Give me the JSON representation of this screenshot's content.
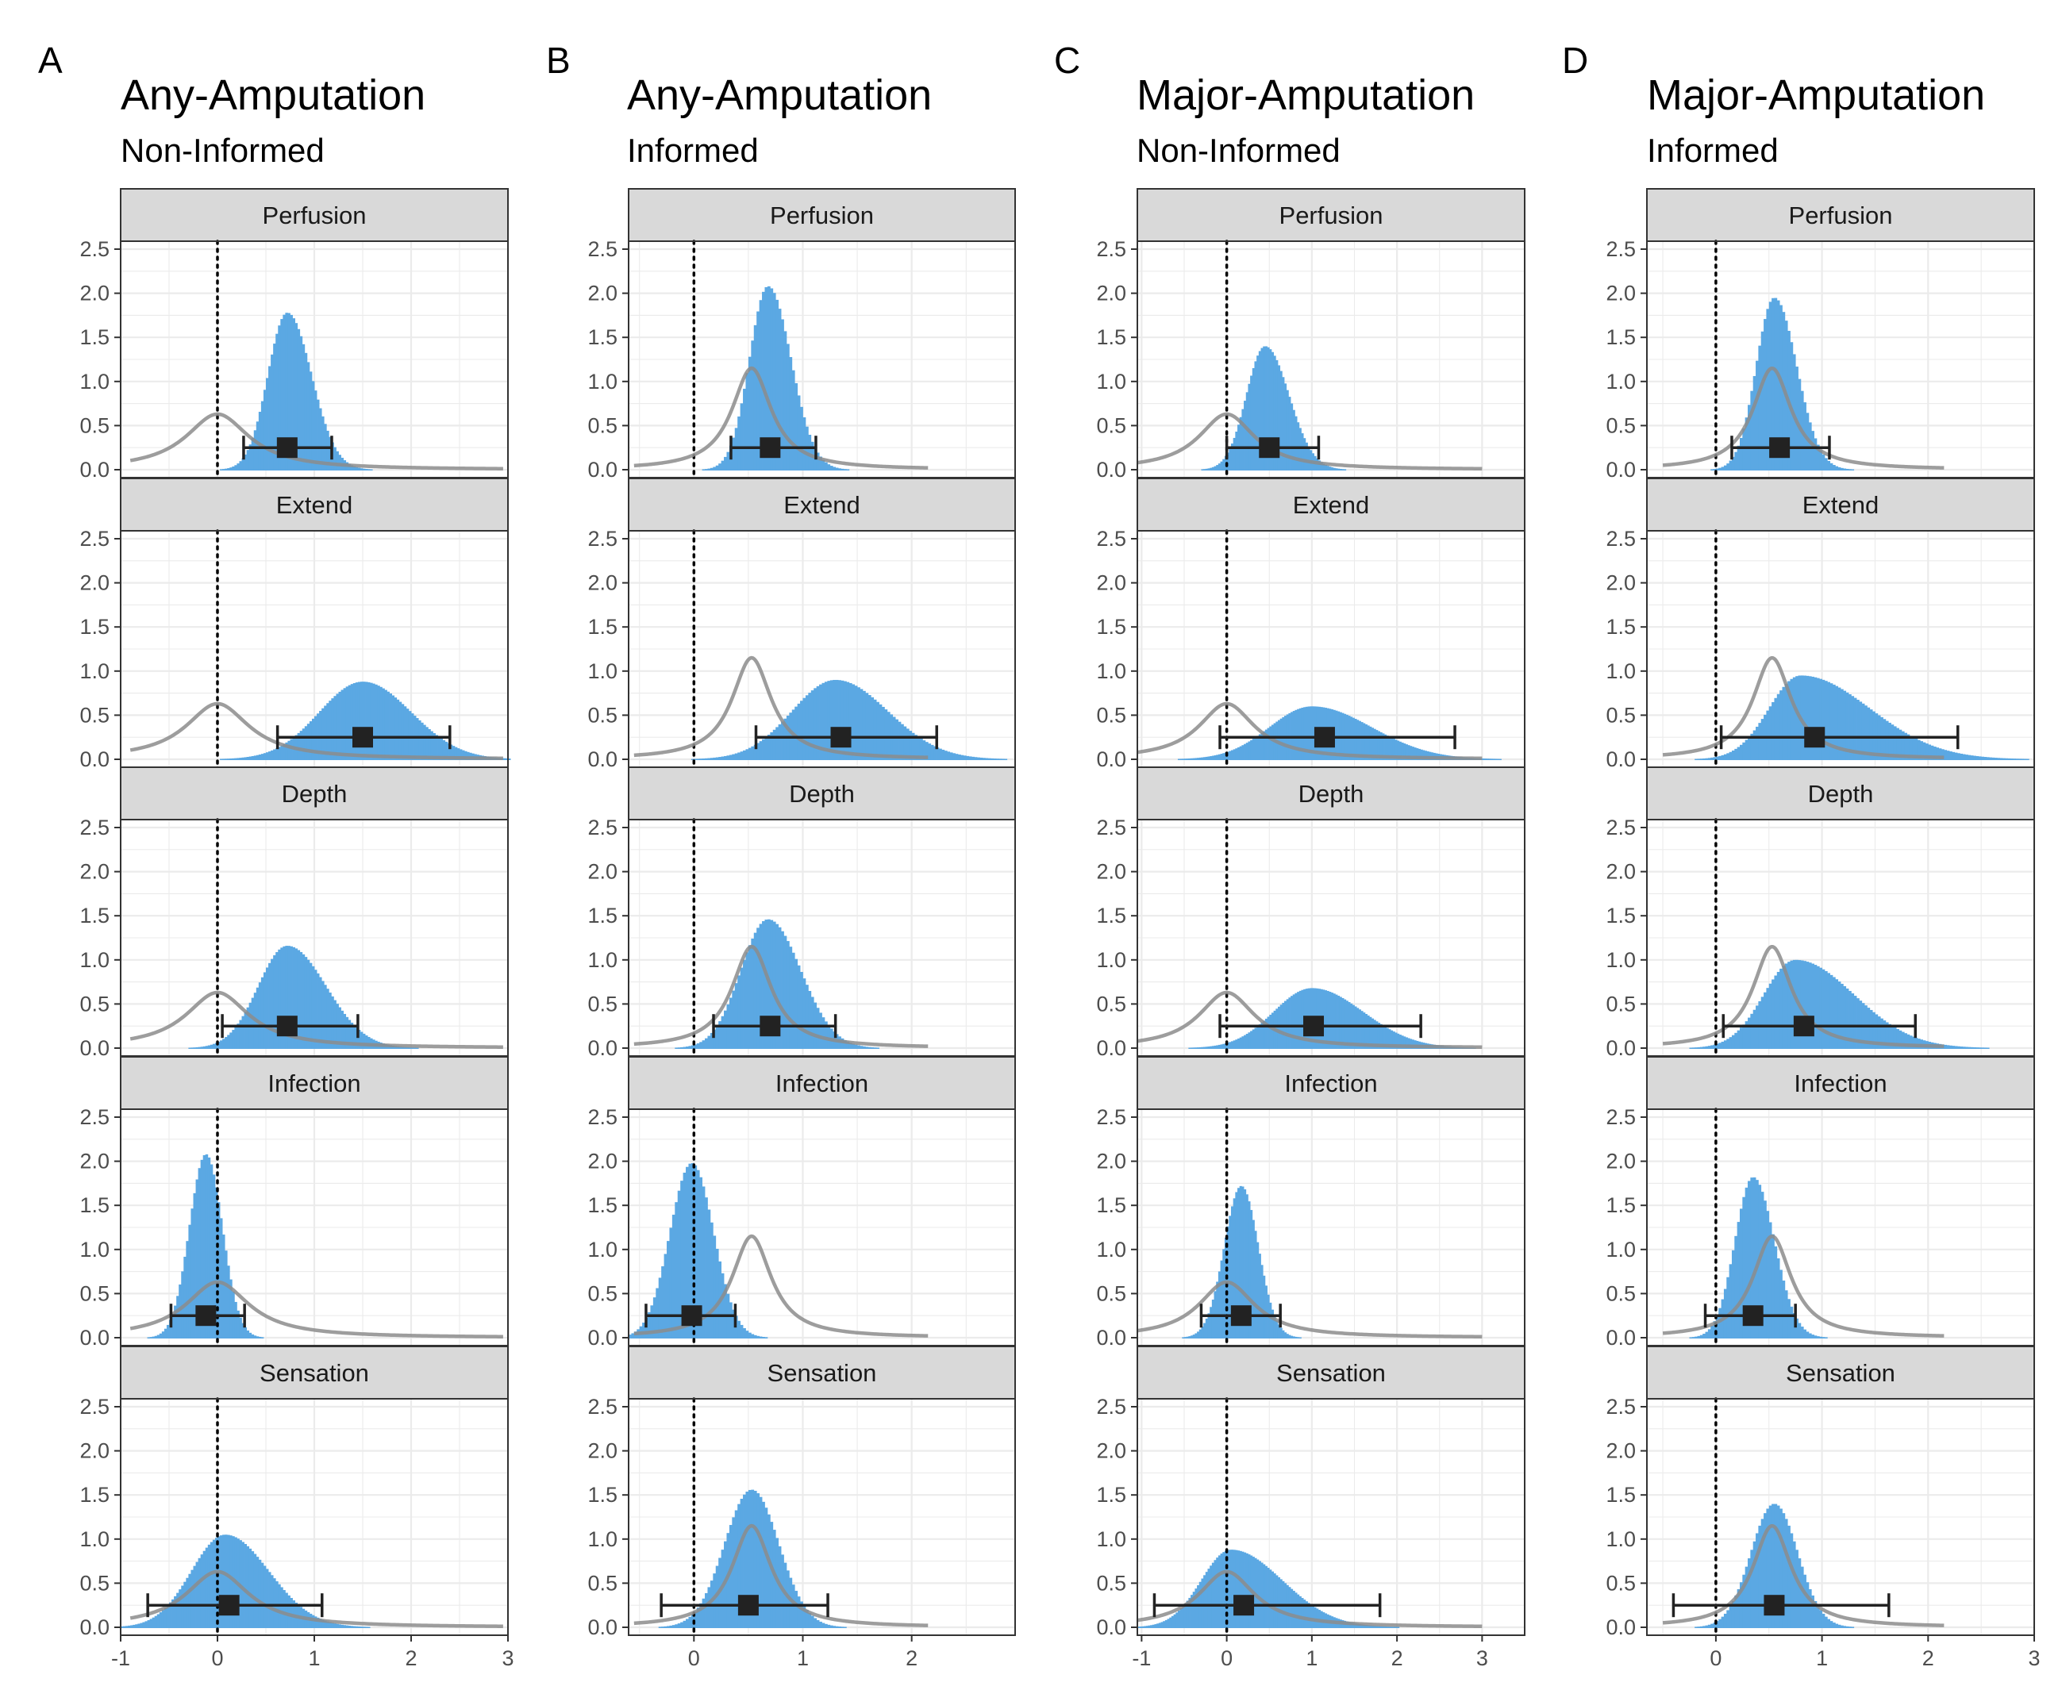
{
  "chart_data": [
    {
      "type": "histogram-density",
      "panel_letter": "A",
      "title": "Any-Amputation",
      "subtitle": "Non-Informed",
      "xlim": [
        -1,
        3
      ],
      "x_ticks": [
        "-1",
        "0",
        "1",
        "2",
        "3"
      ],
      "ylim": [
        0,
        2.5
      ],
      "y_ticks": [
        "0.0",
        "0.5",
        "1.0",
        "1.5",
        "2.0",
        "2.5"
      ],
      "reference_line_x": 0,
      "prior_curve": {
        "peak_x": 0,
        "peak_y": 0.63,
        "scale": 0.4,
        "range": [
          -0.9,
          2.95
        ]
      },
      "colors": {
        "histogram": "#5ba8e3",
        "prior": "#8c8c8c",
        "estimate": "#222222",
        "reference": "#000000"
      },
      "facets": [
        {
          "label": "Perfusion",
          "hist_peak_x": 0.72,
          "hist_peak_y": 1.78,
          "hist_sd_left": 0.2,
          "hist_sd_right": 0.25,
          "estimate": 0.72,
          "ci": [
            0.27,
            1.18
          ],
          "point_y": 0.25
        },
        {
          "label": "Extend",
          "hist_peak_x": 1.5,
          "hist_peak_y": 0.88,
          "hist_sd_left": 0.45,
          "hist_sd_right": 0.5,
          "estimate": 1.5,
          "ci": [
            0.62,
            2.4
          ],
          "point_y": 0.25
        },
        {
          "label": "Depth",
          "hist_peak_x": 0.72,
          "hist_peak_y": 1.16,
          "hist_sd_left": 0.3,
          "hist_sd_right": 0.4,
          "estimate": 0.72,
          "ci": [
            0.05,
            1.45
          ],
          "point_y": 0.25
        },
        {
          "label": "Infection",
          "hist_peak_x": -0.12,
          "hist_peak_y": 2.08,
          "hist_sd_left": 0.17,
          "hist_sd_right": 0.17,
          "estimate": -0.12,
          "ci": [
            -0.48,
            0.28
          ],
          "point_y": 0.25
        },
        {
          "label": "Sensation",
          "hist_peak_x": 0.08,
          "hist_peak_y": 1.05,
          "hist_sd_left": 0.35,
          "hist_sd_right": 0.45,
          "estimate": 0.12,
          "ci": [
            -0.72,
            1.08
          ],
          "point_y": 0.25
        }
      ]
    },
    {
      "type": "histogram-density",
      "panel_letter": "B",
      "title": "Any-Amputation",
      "subtitle": "Informed",
      "xlim": [
        -0.6,
        2.95
      ],
      "x_ticks": [
        "0",
        "1",
        "2"
      ],
      "ylim": [
        0,
        2.5
      ],
      "y_ticks": [
        "0.0",
        "0.5",
        "1.0",
        "1.5",
        "2.0",
        "2.5"
      ],
      "reference_line_x": 0,
      "prior_curve": {
        "peak_x": 0.53,
        "peak_y": 1.15,
        "scale": 0.22,
        "range": [
          -0.55,
          2.15
        ]
      },
      "colors": {
        "histogram": "#5ba8e3",
        "prior": "#8c8c8c",
        "estimate": "#222222",
        "reference": "#000000"
      },
      "facets": [
        {
          "label": "Perfusion",
          "hist_peak_x": 0.68,
          "hist_peak_y": 2.08,
          "hist_sd_left": 0.17,
          "hist_sd_right": 0.21,
          "estimate": 0.7,
          "ci": [
            0.34,
            1.12
          ],
          "point_y": 0.25
        },
        {
          "label": "Extend",
          "hist_peak_x": 1.3,
          "hist_peak_y": 0.9,
          "hist_sd_left": 0.4,
          "hist_sd_right": 0.48,
          "estimate": 1.35,
          "ci": [
            0.57,
            2.23
          ],
          "point_y": 0.25
        },
        {
          "label": "Depth",
          "hist_peak_x": 0.68,
          "hist_peak_y": 1.46,
          "hist_sd_left": 0.25,
          "hist_sd_right": 0.3,
          "estimate": 0.7,
          "ci": [
            0.18,
            1.3
          ],
          "point_y": 0.25
        },
        {
          "label": "Infection",
          "hist_peak_x": -0.02,
          "hist_peak_y": 1.98,
          "hist_sd_left": 0.2,
          "hist_sd_right": 0.2,
          "estimate": -0.02,
          "ci": [
            -0.44,
            0.38
          ],
          "point_y": 0.25
        },
        {
          "label": "Sensation",
          "hist_peak_x": 0.53,
          "hist_peak_y": 1.56,
          "hist_sd_left": 0.25,
          "hist_sd_right": 0.25,
          "estimate": 0.5,
          "ci": [
            -0.3,
            1.23
          ],
          "point_y": 0.25
        }
      ]
    },
    {
      "type": "histogram-density",
      "panel_letter": "C",
      "title": "Major-Amputation",
      "subtitle": "Non-Informed",
      "xlim": [
        -1.05,
        3.5
      ],
      "x_ticks": [
        "-1",
        "0",
        "1",
        "2",
        "3"
      ],
      "ylim": [
        0,
        2.5
      ],
      "y_ticks": [
        "0.0",
        "0.5",
        "1.0",
        "1.5",
        "2.0",
        "2.5"
      ],
      "reference_line_x": 0,
      "prior_curve": {
        "peak_x": 0,
        "peak_y": 0.63,
        "scale": 0.4,
        "range": [
          -1.05,
          3.0
        ]
      },
      "colors": {
        "histogram": "#5ba8e3",
        "prior": "#8c8c8c",
        "estimate": "#222222",
        "reference": "#000000"
      },
      "facets": [
        {
          "label": "Perfusion",
          "hist_peak_x": 0.45,
          "hist_peak_y": 1.4,
          "hist_sd_left": 0.22,
          "hist_sd_right": 0.28,
          "estimate": 0.5,
          "ci": [
            0.0,
            1.08
          ],
          "point_y": 0.25
        },
        {
          "label": "Extend",
          "hist_peak_x": 1.0,
          "hist_peak_y": 0.6,
          "hist_sd_left": 0.5,
          "hist_sd_right": 0.7,
          "estimate": 1.15,
          "ci": [
            -0.08,
            2.68
          ],
          "point_y": 0.25
        },
        {
          "label": "Depth",
          "hist_peak_x": 1.0,
          "hist_peak_y": 0.68,
          "hist_sd_left": 0.45,
          "hist_sd_right": 0.6,
          "estimate": 1.02,
          "ci": [
            -0.08,
            2.28
          ],
          "point_y": 0.25
        },
        {
          "label": "Infection",
          "hist_peak_x": 0.17,
          "hist_peak_y": 1.72,
          "hist_sd_left": 0.2,
          "hist_sd_right": 0.2,
          "estimate": 0.17,
          "ci": [
            -0.3,
            0.63
          ],
          "point_y": 0.25
        },
        {
          "label": "Sensation",
          "hist_peak_x": 0.05,
          "hist_peak_y": 0.88,
          "hist_sd_left": 0.35,
          "hist_sd_right": 0.6,
          "estimate": 0.2,
          "ci": [
            -0.85,
            1.8
          ],
          "point_y": 0.25
        }
      ]
    },
    {
      "type": "histogram-density",
      "panel_letter": "D",
      "title": "Major-Amputation",
      "subtitle": "Informed",
      "xlim": [
        -0.65,
        3.0
      ],
      "x_ticks": [
        "0",
        "1",
        "2",
        "3"
      ],
      "ylim": [
        0,
        2.5
      ],
      "y_ticks": [
        "0.0",
        "0.5",
        "1.0",
        "1.5",
        "2.0",
        "2.5"
      ],
      "reference_line_x": 0,
      "prior_curve": {
        "peak_x": 0.53,
        "peak_y": 1.15,
        "scale": 0.22,
        "range": [
          -0.5,
          2.15
        ]
      },
      "colors": {
        "histogram": "#5ba8e3",
        "prior": "#8c8c8c",
        "estimate": "#222222",
        "reference": "#000000"
      },
      "facets": [
        {
          "label": "Perfusion",
          "hist_peak_x": 0.55,
          "hist_peak_y": 1.95,
          "hist_sd_left": 0.17,
          "hist_sd_right": 0.21,
          "estimate": 0.6,
          "ci": [
            0.15,
            1.07
          ],
          "point_y": 0.25
        },
        {
          "label": "Extend",
          "hist_peak_x": 0.8,
          "hist_peak_y": 0.95,
          "hist_sd_left": 0.3,
          "hist_sd_right": 0.65,
          "estimate": 0.93,
          "ci": [
            0.05,
            2.28
          ],
          "point_y": 0.25
        },
        {
          "label": "Depth",
          "hist_peak_x": 0.75,
          "hist_peak_y": 1.0,
          "hist_sd_left": 0.3,
          "hist_sd_right": 0.55,
          "estimate": 0.83,
          "ci": [
            0.07,
            1.88
          ],
          "point_y": 0.25
        },
        {
          "label": "Infection",
          "hist_peak_x": 0.35,
          "hist_peak_y": 1.82,
          "hist_sd_left": 0.17,
          "hist_sd_right": 0.2,
          "estimate": 0.35,
          "ci": [
            -0.1,
            0.75
          ],
          "point_y": 0.25
        },
        {
          "label": "Sensation",
          "hist_peak_x": 0.55,
          "hist_peak_y": 1.4,
          "hist_sd_left": 0.22,
          "hist_sd_right": 0.22,
          "estimate": 0.55,
          "ci": [
            -0.4,
            1.63
          ],
          "point_y": 0.25
        }
      ]
    }
  ]
}
